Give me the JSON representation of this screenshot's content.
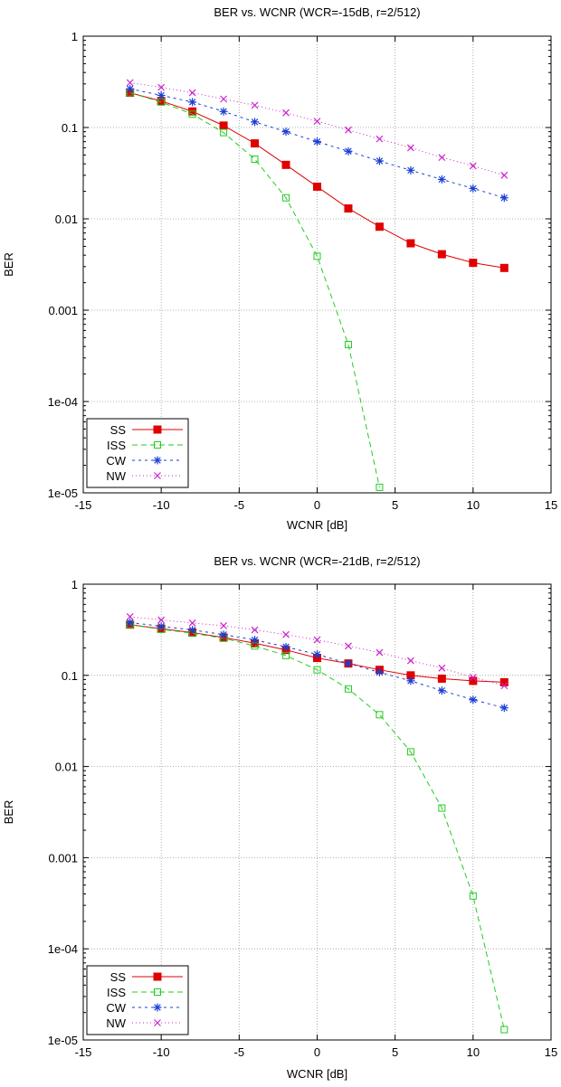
{
  "chart_data": [
    {
      "type": "line",
      "title": "BER vs. WCNR (WCR=-15dB, r=2/512)",
      "xlabel": "WCNR [dB]",
      "ylabel": "BER",
      "xlim": [
        -15,
        15
      ],
      "ylim": [
        1e-05,
        1
      ],
      "y_scale": "log",
      "grid": true,
      "legend_position": "bottom-left",
      "x_ticks": [
        "-15",
        "-10",
        "-5",
        "0",
        "5",
        "10",
        "15"
      ],
      "y_ticks": [
        "1",
        "0.1",
        "0.01",
        "0.001",
        "1e-04",
        "1e-05"
      ],
      "x": [
        -12,
        -10,
        -8,
        -6,
        -4,
        -2,
        0,
        2,
        4,
        6,
        8,
        10,
        12
      ],
      "series": [
        {
          "name": "SS",
          "color": "#e00000",
          "marker": "filled-square",
          "dash": "",
          "values": [
            0.24,
            0.195,
            0.15,
            0.105,
            0.067,
            0.039,
            0.0225,
            0.013,
            0.0082,
            0.0054,
            0.0041,
            0.0033,
            0.0029
          ]
        },
        {
          "name": "ISS",
          "color": "#22cc22",
          "marker": "open-square",
          "dash": "6,4",
          "values": [
            0.24,
            0.19,
            0.14,
            0.088,
            0.045,
            0.017,
            0.0039,
            0.00042,
            1.15e-05,
            null,
            null,
            null,
            null
          ]
        },
        {
          "name": "CW",
          "color": "#1a3fd6",
          "marker": "star",
          "dash": "3,4",
          "values": [
            0.265,
            0.225,
            0.19,
            0.15,
            0.115,
            0.09,
            0.07,
            0.055,
            0.043,
            0.034,
            0.027,
            0.0215,
            0.017
          ]
        },
        {
          "name": "NW",
          "color": "#cc22cc",
          "marker": "cross",
          "dash": "1,3",
          "values": [
            0.31,
            0.275,
            0.24,
            0.205,
            0.175,
            0.145,
            0.117,
            0.094,
            0.075,
            0.06,
            0.047,
            0.038,
            0.03
          ]
        }
      ]
    },
    {
      "type": "line",
      "title": "BER vs. WCNR (WCR=-21dB, r=2/512)",
      "xlabel": "WCNR [dB]",
      "ylabel": "BER",
      "xlim": [
        -15,
        15
      ],
      "ylim": [
        1e-05,
        1
      ],
      "y_scale": "log",
      "grid": true,
      "legend_position": "bottom-left",
      "x_ticks": [
        "-15",
        "-10",
        "-5",
        "0",
        "5",
        "10",
        "15"
      ],
      "y_ticks": [
        "1",
        "0.1",
        "0.01",
        "0.001",
        "1e-04",
        "1e-05"
      ],
      "x": [
        -12,
        -10,
        -8,
        -6,
        -4,
        -2,
        0,
        2,
        4,
        6,
        8,
        10,
        12
      ],
      "series": [
        {
          "name": "SS",
          "color": "#e00000",
          "marker": "filled-square",
          "dash": "",
          "values": [
            0.36,
            0.325,
            0.295,
            0.26,
            0.225,
            0.19,
            0.155,
            0.135,
            0.115,
            0.1,
            0.092,
            0.087,
            0.084
          ]
        },
        {
          "name": "ISS",
          "color": "#22cc22",
          "marker": "open-square",
          "dash": "6,4",
          "values": [
            0.36,
            0.32,
            0.29,
            0.255,
            0.21,
            0.165,
            0.115,
            0.071,
            0.037,
            0.0145,
            0.0035,
            0.00038,
            1.3e-05
          ]
        },
        {
          "name": "CW",
          "color": "#1a3fd6",
          "marker": "star",
          "dash": "3,4",
          "values": [
            0.38,
            0.345,
            0.315,
            0.28,
            0.245,
            0.205,
            0.17,
            0.135,
            0.108,
            0.087,
            0.068,
            0.054,
            0.044
          ]
        },
        {
          "name": "NW",
          "color": "#cc22cc",
          "marker": "cross",
          "dash": "1,3",
          "values": [
            0.44,
            0.405,
            0.375,
            0.35,
            0.315,
            0.28,
            0.245,
            0.21,
            0.178,
            0.145,
            0.12,
            0.095,
            0.077
          ]
        }
      ]
    }
  ]
}
